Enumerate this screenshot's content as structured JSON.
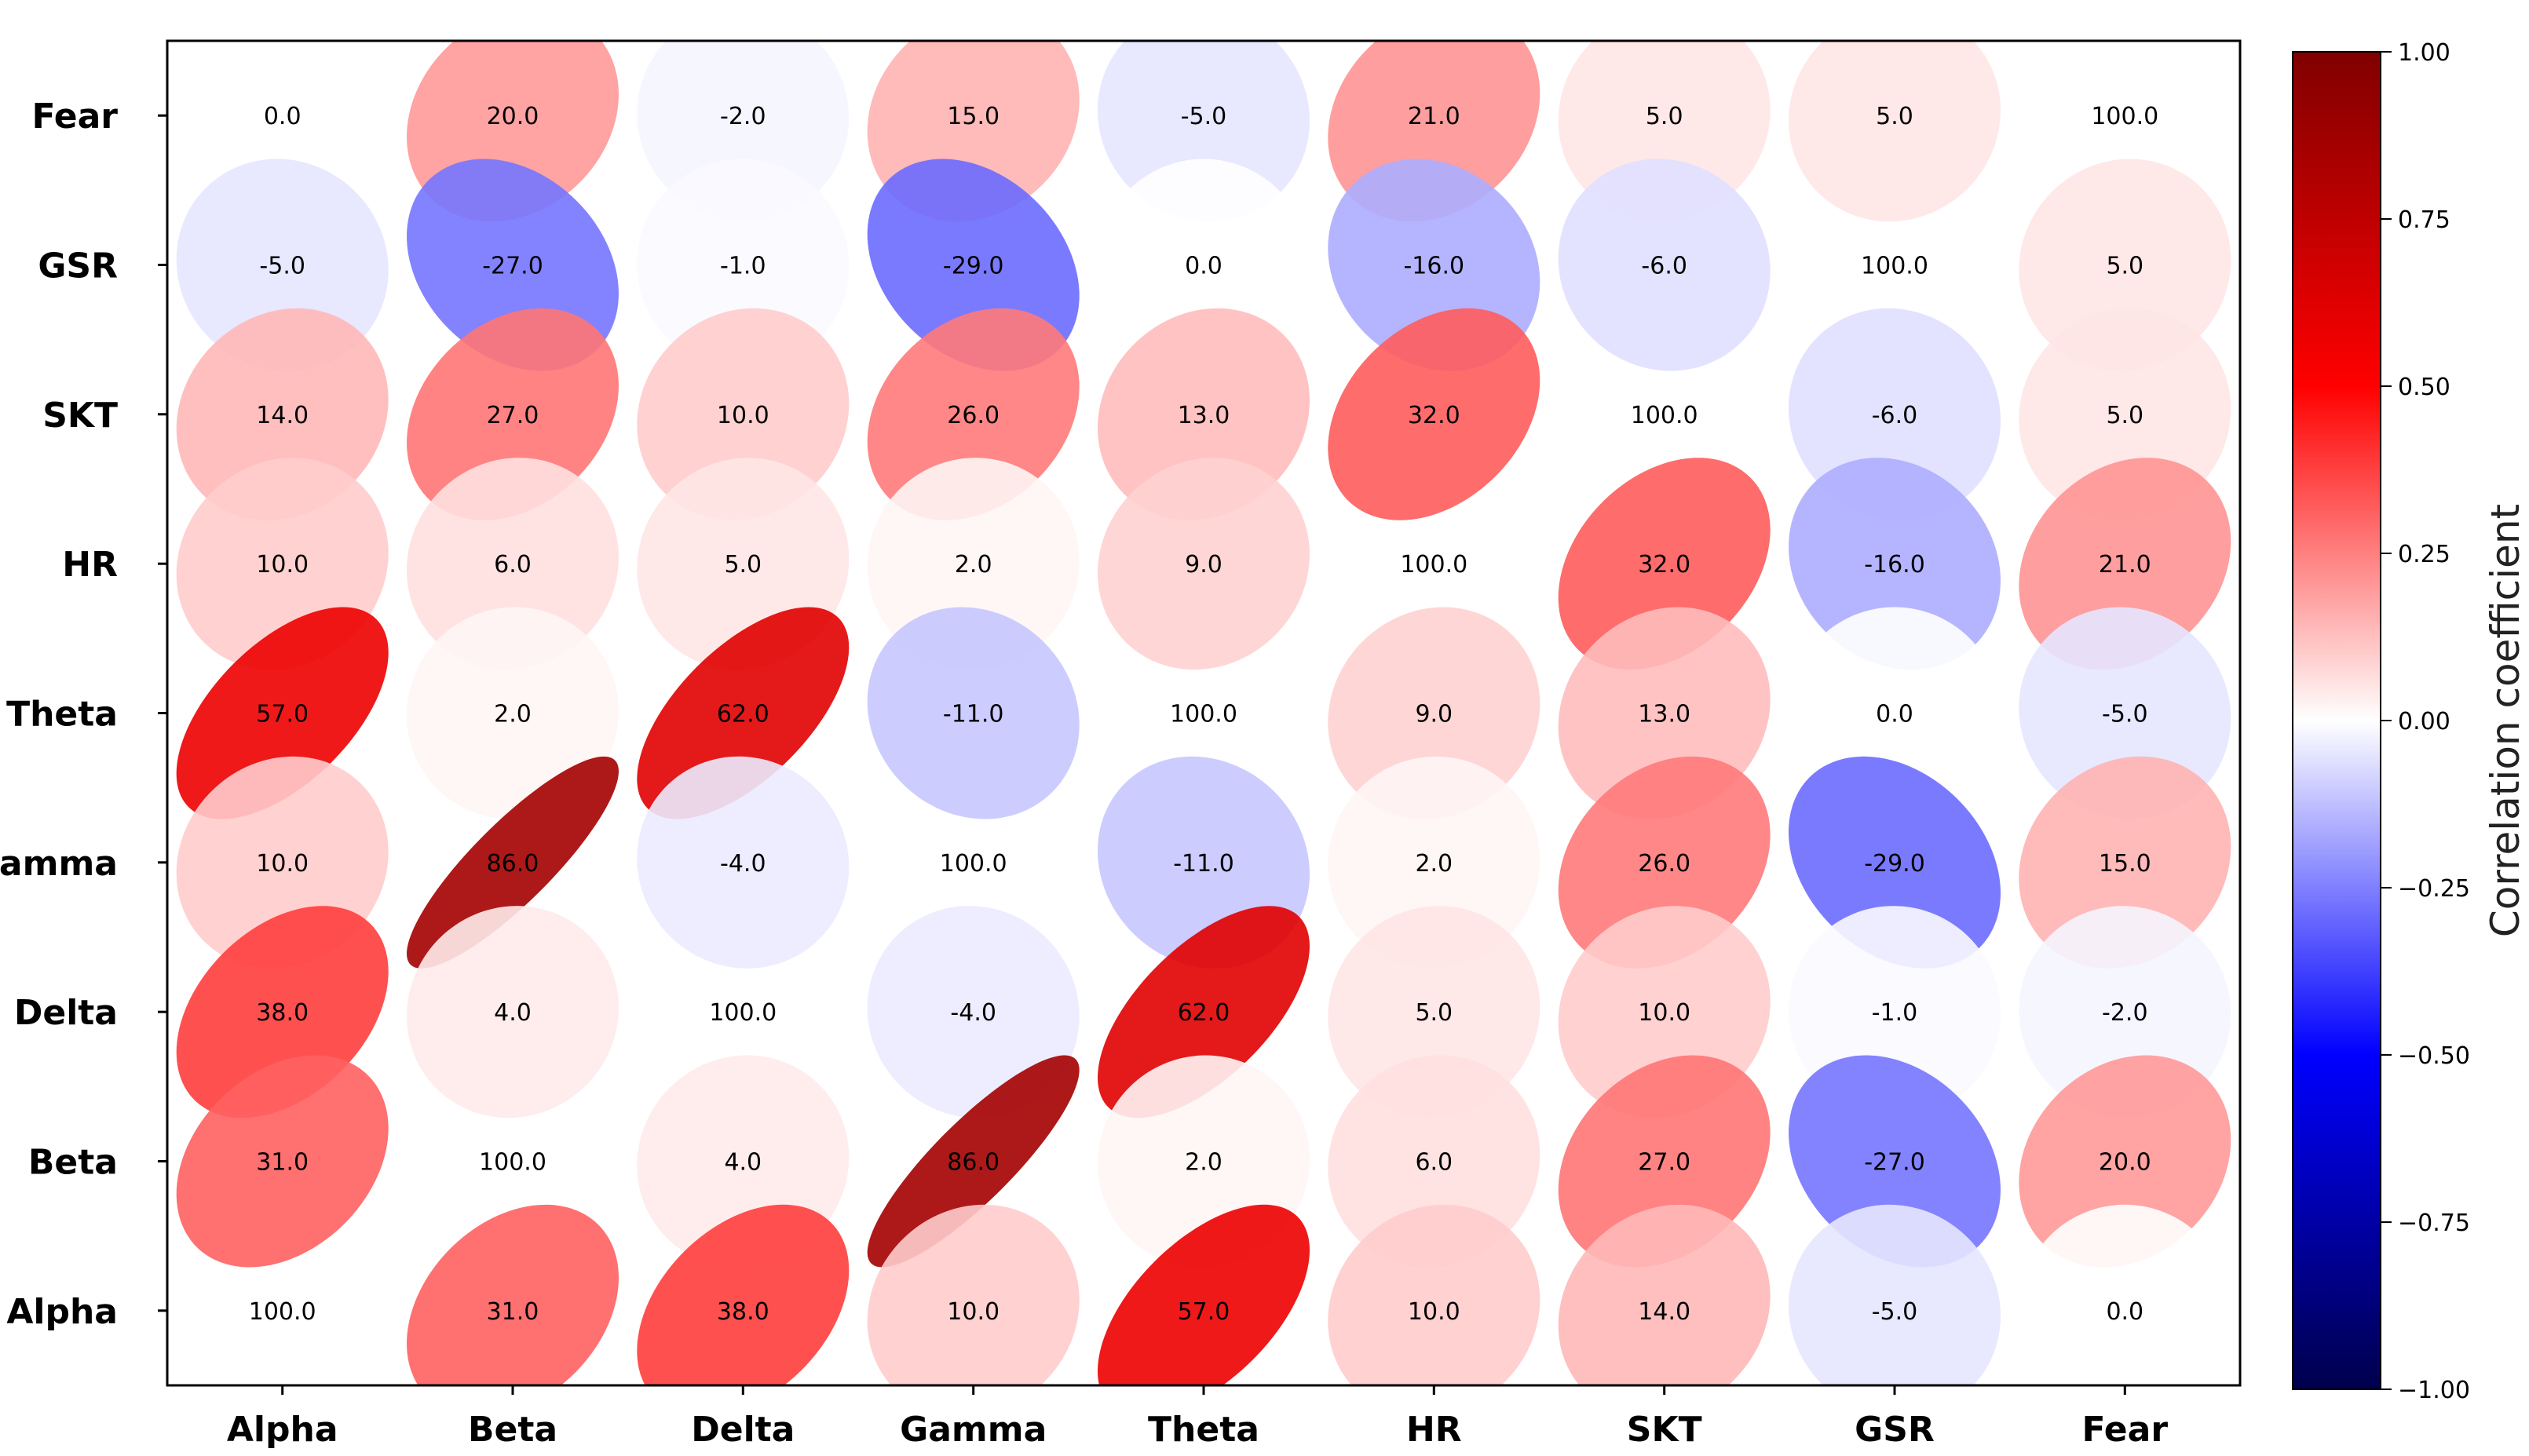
{
  "chart_data": {
    "type": "correlation-ellipse-matrix",
    "rows": [
      "Fear",
      "GSR",
      "SKT",
      "HR",
      "Theta",
      "Gamma",
      "Delta",
      "Beta",
      "Alpha"
    ],
    "columns": [
      "Alpha",
      "Beta",
      "Delta",
      "Gamma",
      "Theta",
      "HR",
      "SKT",
      "GSR",
      "Fear"
    ],
    "labels": [
      [
        "0.0",
        "20.0",
        "-2.0",
        "15.0",
        "-5.0",
        "21.0",
        "5.0",
        "5.0",
        "100.0"
      ],
      [
        "-5.0",
        "-27.0",
        "-1.0",
        "-29.0",
        "0.0",
        "-16.0",
        "-6.0",
        "100.0",
        "5.0"
      ],
      [
        "14.0",
        "27.0",
        "10.0",
        "26.0",
        "13.0",
        "32.0",
        "100.0",
        "-6.0",
        "5.0"
      ],
      [
        "10.0",
        "6.0",
        "5.0",
        "2.0",
        "9.0",
        "100.0",
        "32.0",
        "-16.0",
        "21.0"
      ],
      [
        "57.0",
        "2.0",
        "62.0",
        "-11.0",
        "100.0",
        "9.0",
        "13.0",
        "0.0",
        "-5.0"
      ],
      [
        "10.0",
        "86.0",
        "-4.0",
        "100.0",
        "-11.0",
        "2.0",
        "26.0",
        "-29.0",
        "15.0"
      ],
      [
        "38.0",
        "4.0",
        "100.0",
        "-4.0",
        "62.0",
        "5.0",
        "10.0",
        "-1.0",
        "-2.0"
      ],
      [
        "31.0",
        "100.0",
        "4.0",
        "86.0",
        "2.0",
        "6.0",
        "27.0",
        "-27.0",
        "20.0"
      ],
      [
        "100.0",
        "31.0",
        "38.0",
        "10.0",
        "57.0",
        "10.0",
        "14.0",
        "-5.0",
        "0.0"
      ]
    ],
    "colorbar": {
      "label": "Correlation coefficient",
      "range": [
        -1.0,
        1.0
      ],
      "ticks": [
        1.0,
        0.75,
        0.5,
        0.25,
        0.0,
        -0.25,
        -0.5,
        -0.75,
        -1.0
      ],
      "tick_labels": [
        "1.00",
        "0.75",
        "0.50",
        "0.25",
        "0.00",
        "−0.25",
        "−0.50",
        "−0.75",
        "−1.00"
      ],
      "colormap": "seismic"
    }
  }
}
